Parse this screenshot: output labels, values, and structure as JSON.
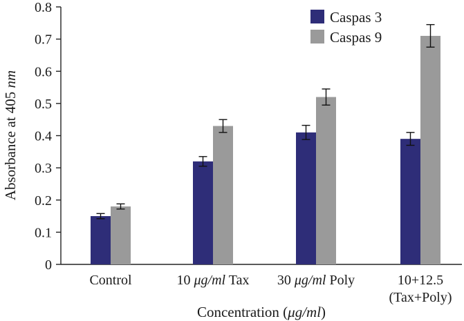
{
  "chart_data": {
    "type": "bar",
    "ylabel_main": "Absorbance at 405 ",
    "ylabel_unit": "nm",
    "xlabel_main": "Concentration (",
    "xlabel_unit": "μg/ml",
    "xlabel_close": ")",
    "ylim": [
      0,
      0.8
    ],
    "yticks": [
      "0",
      "0.1",
      "0.2",
      "0.3",
      "0.4",
      "0.5",
      "0.6",
      "0.7",
      "0.8"
    ],
    "categories": [
      {
        "lines": [
          {
            "pre": "Control",
            "ital": "",
            "post": ""
          }
        ]
      },
      {
        "lines": [
          {
            "pre": "10 ",
            "ital": "μg/ml",
            "post": " Tax"
          }
        ]
      },
      {
        "lines": [
          {
            "pre": "30 ",
            "ital": "μg/ml",
            "post": " Poly"
          }
        ]
      },
      {
        "lines": [
          {
            "pre": "10+12.5",
            "ital": "",
            "post": ""
          },
          {
            "pre": "(Tax+Poly)",
            "ital": "",
            "post": ""
          }
        ]
      }
    ],
    "series": [
      {
        "name": "Caspas 3",
        "color": "#2e2d78",
        "values": [
          0.15,
          0.32,
          0.41,
          0.39
        ],
        "errors": [
          0.008,
          0.015,
          0.022,
          0.02
        ]
      },
      {
        "name": "Caspas 9",
        "color": "#9a9a9a",
        "values": [
          0.18,
          0.43,
          0.52,
          0.71
        ],
        "errors": [
          0.008,
          0.02,
          0.025,
          0.035
        ]
      }
    ],
    "legend_position": "top-right",
    "grid": false
  }
}
